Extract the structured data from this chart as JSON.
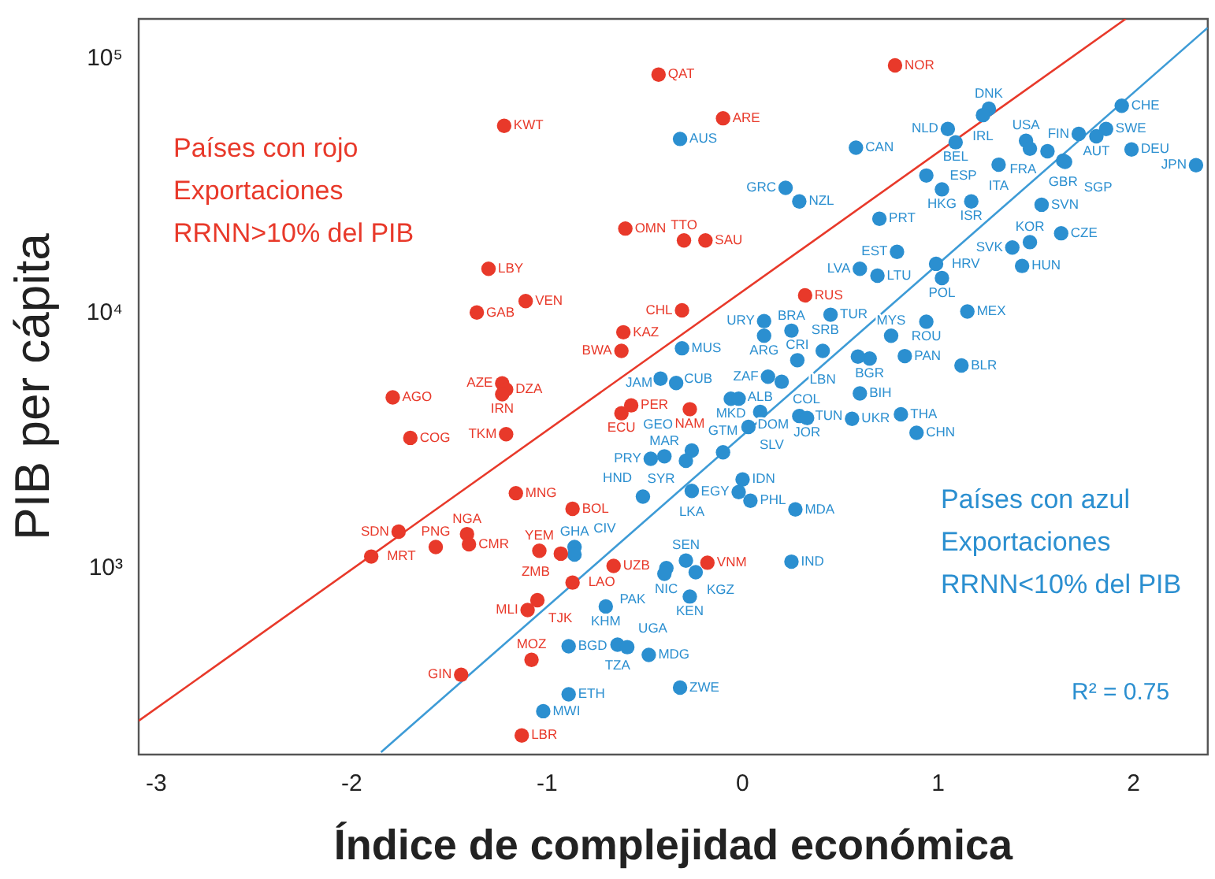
{
  "chart_data": {
    "type": "scatter",
    "xlabel": "Índice de complejidad económica",
    "ylabel": "PIB per cápita",
    "log": "y",
    "xlim": [
      -3.09,
      2.38
    ],
    "ylim": [
      185,
      144000
    ],
    "xticks": [
      -3,
      -2,
      -1,
      0,
      1,
      2
    ],
    "yticks": [
      {
        "value": 1000,
        "label": "10³"
      },
      {
        "value": 10000,
        "label": "10⁴"
      },
      {
        "value": 100000,
        "label": "10⁵"
      }
    ],
    "grid": false,
    "legend": false,
    "marker": "circle",
    "series": [
      {
        "color": "#e8392a",
        "x": [
          -0.43,
          -1.22,
          -0.1,
          0.78,
          -0.6,
          -0.3,
          -0.19,
          -1.3,
          -1.11,
          -1.36,
          -0.31,
          0.32,
          -0.61,
          -0.62,
          -1.23,
          -1.21,
          -1.23,
          -1.79,
          -0.57,
          -0.62,
          -0.27,
          -1.21,
          -1.7,
          -1.16,
          -0.87,
          -1.76,
          -1.9,
          -1.57,
          -1.41,
          -1.4,
          -1.04,
          -0.93,
          -0.66,
          -0.18,
          -0.87,
          -1.05,
          -1.1,
          -1.44,
          -1.08,
          -1.13
        ],
        "values": [
          87000,
          54700,
          58600,
          94600,
          21600,
          19400,
          19400,
          15000,
          11200,
          10100,
          10300,
          11800,
          8450,
          7140,
          5320,
          5030,
          4820,
          4690,
          4360,
          4060,
          4210,
          3360,
          3250,
          1970,
          1710,
          1390,
          1110,
          1210,
          1360,
          1240,
          1170,
          1140,
          1020,
          1050,
          877,
          748,
          684,
          381,
          436,
          220
        ]
      },
      {
        "color": "#2b8fd0",
        "x": [
          -0.32,
          0.22,
          0.29,
          0.58,
          1.05,
          1.26,
          1.23,
          1.09,
          1.45,
          1.47,
          1.56,
          1.72,
          1.86,
          1.81,
          1.94,
          1.99,
          1.64,
          1.65,
          2.32,
          1.31,
          0.94,
          1.02,
          1.17,
          1.53,
          0.7,
          1.63,
          1.47,
          1.38,
          1.43,
          0.79,
          0.6,
          0.69,
          0.99,
          1.02,
          0.45,
          1.15,
          0.94,
          0.76,
          0.65,
          0.59,
          0.83,
          1.12,
          0.6,
          0.41,
          0.56,
          0.81,
          0.89,
          0.11,
          0.25,
          0.11,
          -0.31,
          -0.42,
          -0.34,
          0.13,
          0.28,
          0.2,
          -0.06,
          -0.02,
          0.09,
          0.03,
          0.29,
          0.33,
          -0.1,
          -0.26,
          -0.4,
          -0.47,
          -0.29,
          0.0,
          -0.02,
          -0.26,
          -0.51,
          0.04,
          0.27,
          -0.86,
          -0.86,
          -0.29,
          -0.39,
          -0.4,
          -0.24,
          0.25,
          -0.27,
          -0.7,
          -0.89,
          -0.64,
          -0.59,
          -0.48,
          -0.32,
          -0.89,
          -1.02
        ],
        "values": [
          48600,
          31200,
          27600,
          44900,
          53200,
          63900,
          60300,
          47100,
          47800,
          44500,
          43500,
          50900,
          53200,
          49800,
          65600,
          44200,
          39900,
          39500,
          38300,
          38500,
          34900,
          30800,
          27600,
          26800,
          23600,
          20700,
          19100,
          18200,
          15400,
          17500,
          15000,
          14100,
          15700,
          13800,
          9900,
          10200,
          9290,
          8190,
          6660,
          6780,
          6810,
          6260,
          4860,
          7140,
          3860,
          4020,
          3400,
          9350,
          8570,
          8190,
          7310,
          5550,
          5340,
          5650,
          6560,
          5400,
          4630,
          4630,
          4110,
          3590,
          3960,
          3890,
          2850,
          2900,
          2750,
          2690,
          2640,
          2230,
          1990,
          2010,
          1910,
          1840,
          1700,
          1210,
          1130,
          1070,
          1000,
          950,
          963,
          1060,
          773,
          707,
          493,
          500,
          489,
          456,
          339,
          319,
          274
        ]
      },
      {
        "type": "line",
        "color": "#e8392a",
        "marker": "none",
        "x": [
          -3.09,
          1.96
        ],
        "values": [
          251,
          144000
        ]
      },
      {
        "type": "line",
        "color": "#3d9bd6",
        "marker": "none",
        "x": [
          -1.85,
          2.38
        ],
        "values": [
          189,
          133000
        ]
      }
    ],
    "annotations": [
      "Países con rojo\nExportaciones\nRRNN>10% del PIB",
      "Países con azul\nExportaciones\nRRNN<10% del PIB",
      "R² = 0.75",
      {
        "text": "QAT",
        "x": -0.43,
        "y": 87000
      },
      {
        "text": "KWT",
        "x": -1.22,
        "y": 54700
      },
      {
        "text": "ARE",
        "x": -0.1,
        "y": 58600
      },
      {
        "text": "NOR",
        "x": 0.78,
        "y": 94600
      },
      {
        "text": "OMN",
        "x": -0.6,
        "y": 21600
      },
      {
        "text": "TTO",
        "x": -0.3,
        "y": 19400
      },
      {
        "text": "SAU",
        "x": -0.19,
        "y": 19400
      },
      {
        "text": "LBY",
        "x": -1.3,
        "y": 15000
      },
      {
        "text": "VEN",
        "x": -1.11,
        "y": 11200
      },
      {
        "text": "GAB",
        "x": -1.36,
        "y": 10100
      },
      {
        "text": "CHL",
        "x": -0.31,
        "y": 10300
      },
      {
        "text": "RUS",
        "x": 0.32,
        "y": 11800
      },
      {
        "text": "KAZ",
        "x": -0.61,
        "y": 8450
      },
      {
        "text": "BWA",
        "x": -0.62,
        "y": 7140
      },
      {
        "text": "AZE",
        "x": -1.23,
        "y": 5320
      },
      {
        "text": "DZA",
        "x": -1.21,
        "y": 5030
      },
      {
        "text": "IRN",
        "x": -1.23,
        "y": 4820
      },
      {
        "text": "AGO",
        "x": -1.79,
        "y": 4690
      },
      {
        "text": "PER",
        "x": -0.57,
        "y": 4360
      },
      {
        "text": "ECU",
        "x": -0.62,
        "y": 4060
      },
      {
        "text": "NAM",
        "x": -0.27,
        "y": 4210
      },
      {
        "text": "TKM",
        "x": -1.21,
        "y": 3360
      },
      {
        "text": "COG",
        "x": -1.7,
        "y": 3250
      },
      {
        "text": "MNG",
        "x": -1.16,
        "y": 1970
      },
      {
        "text": "BOL",
        "x": -0.87,
        "y": 1710
      },
      {
        "text": "SDN",
        "x": -1.76,
        "y": 1390
      },
      {
        "text": "MRT",
        "x": -1.9,
        "y": 1110
      },
      {
        "text": "PNG",
        "x": -1.57,
        "y": 1210
      },
      {
        "text": "NGA",
        "x": -1.41,
        "y": 1360
      },
      {
        "text": "CMR",
        "x": -1.4,
        "y": 1240
      },
      {
        "text": "YEM",
        "x": -1.04,
        "y": 1170
      },
      {
        "text": "ZMB",
        "x": -0.93,
        "y": 1140
      },
      {
        "text": "UZB",
        "x": -0.66,
        "y": 1020
      },
      {
        "text": "VNM",
        "x": -0.18,
        "y": 1050
      },
      {
        "text": "LAO",
        "x": -0.87,
        "y": 877
      },
      {
        "text": "TJK",
        "x": -1.05,
        "y": 748
      },
      {
        "text": "MLI",
        "x": -1.1,
        "y": 684
      },
      {
        "text": "GIN",
        "x": -1.44,
        "y": 381
      },
      {
        "text": "MOZ",
        "x": -1.08,
        "y": 436
      },
      {
        "text": "LBR",
        "x": -1.13,
        "y": 220
      },
      {
        "text": "AUS",
        "x": -0.32,
        "y": 48600
      },
      {
        "text": "GRC",
        "x": 0.22,
        "y": 31200
      },
      {
        "text": "NZL",
        "x": 0.29,
        "y": 27600
      },
      {
        "text": "CAN",
        "x": 0.58,
        "y": 44900
      },
      {
        "text": "NLD",
        "x": 1.05,
        "y": 53200
      },
      {
        "text": "DNK",
        "x": 1.26,
        "y": 63900
      },
      {
        "text": "IRL",
        "x": 1.23,
        "y": 60300
      },
      {
        "text": "BEL",
        "x": 1.09,
        "y": 47100
      },
      {
        "text": "USA",
        "x": 1.45,
        "y": 47800
      },
      {
        "text": "FRA",
        "x": 1.56,
        "y": 43500
      },
      {
        "text": "FIN",
        "x": 1.72,
        "y": 50900
      },
      {
        "text": "SWE",
        "x": 1.86,
        "y": 53200
      },
      {
        "text": "AUT",
        "x": 1.81,
        "y": 49800
      },
      {
        "text": "CHE",
        "x": 1.94,
        "y": 65600
      },
      {
        "text": "DEU",
        "x": 1.99,
        "y": 44200
      },
      {
        "text": "GBR",
        "x": 1.64,
        "y": 39900
      },
      {
        "text": "SGP",
        "x": 1.65,
        "y": 39500
      },
      {
        "text": "JPN",
        "x": 2.32,
        "y": 38300
      },
      {
        "text": "ITA",
        "x": 1.31,
        "y": 38500
      },
      {
        "text": "ESP",
        "x": 0.94,
        "y": 34900
      },
      {
        "text": "HKG",
        "x": 1.02,
        "y": 30800
      },
      {
        "text": "ISR",
        "x": 1.17,
        "y": 27600
      },
      {
        "text": "SVN",
        "x": 1.53,
        "y": 26800
      },
      {
        "text": "PRT",
        "x": 0.7,
        "y": 23600
      },
      {
        "text": "CZE",
        "x": 1.63,
        "y": 20700
      },
      {
        "text": "KOR",
        "x": 1.47,
        "y": 19100
      },
      {
        "text": "SVK",
        "x": 1.38,
        "y": 18200
      },
      {
        "text": "HUN",
        "x": 1.43,
        "y": 15400
      },
      {
        "text": "EST",
        "x": 0.79,
        "y": 17500
      },
      {
        "text": "LVA",
        "x": 0.6,
        "y": 15000
      },
      {
        "text": "LTU",
        "x": 0.69,
        "y": 14100
      },
      {
        "text": "HRV",
        "x": 0.99,
        "y": 15700
      },
      {
        "text": "POL",
        "x": 1.02,
        "y": 13800
      },
      {
        "text": "TUR",
        "x": 0.45,
        "y": 9900
      },
      {
        "text": "MEX",
        "x": 1.15,
        "y": 10200
      },
      {
        "text": "ROU",
        "x": 0.94,
        "y": 9290
      },
      {
        "text": "MYS",
        "x": 0.76,
        "y": 8190
      },
      {
        "text": "BGR",
        "x": 0.65,
        "y": 6660
      },
      {
        "text": "SRB",
        "x": 0.59,
        "y": 6780
      },
      {
        "text": "PAN",
        "x": 0.83,
        "y": 6810
      },
      {
        "text": "BLR",
        "x": 1.12,
        "y": 6260
      },
      {
        "text": "BIH",
        "x": 0.6,
        "y": 4860
      },
      {
        "text": "LBN",
        "x": 0.41,
        "y": 7140
      },
      {
        "text": "UKR",
        "x": 0.56,
        "y": 3860
      },
      {
        "text": "THA",
        "x": 0.81,
        "y": 4020
      },
      {
        "text": "CHN",
        "x": 0.89,
        "y": 3400
      },
      {
        "text": "URY",
        "x": 0.11,
        "y": 9350
      },
      {
        "text": "BRA",
        "x": 0.25,
        "y": 8570
      },
      {
        "text": "ARG",
        "x": 0.11,
        "y": 8190
      },
      {
        "text": "MUS",
        "x": -0.31,
        "y": 7310
      },
      {
        "text": "CUB",
        "x": -0.42,
        "y": 5550
      },
      {
        "text": "JAM",
        "x": -0.34,
        "y": 5340
      },
      {
        "text": "ZAF",
        "x": 0.13,
        "y": 5650
      },
      {
        "text": "CRI",
        "x": 0.28,
        "y": 6560
      },
      {
        "text": "COL",
        "x": 0.2,
        "y": 5400
      },
      {
        "text": "MKD",
        "x": -0.06,
        "y": 4630
      },
      {
        "text": "DOM",
        "x": -0.02,
        "y": 4630
      },
      {
        "text": "ALB",
        "x": 0.09,
        "y": 4110
      },
      {
        "text": "SLV",
        "x": 0.03,
        "y": 3590
      },
      {
        "text": "TUN",
        "x": 0.29,
        "y": 3960
      },
      {
        "text": "JOR",
        "x": 0.33,
        "y": 3890
      },
      {
        "text": "GTM",
        "x": -0.1,
        "y": 2850
      },
      {
        "text": "GEO",
        "x": -0.26,
        "y": 2900
      },
      {
        "text": "MAR",
        "x": -0.4,
        "y": 2750
      },
      {
        "text": "PRY",
        "x": -0.47,
        "y": 2690
      },
      {
        "text": "SYR",
        "x": -0.29,
        "y": 2640
      },
      {
        "text": "IDN",
        "x": 0.0,
        "y": 2230
      },
      {
        "text": "EGY",
        "x": -0.02,
        "y": 1990
      },
      {
        "text": "LKA",
        "x": -0.26,
        "y": 2010
      },
      {
        "text": "HND",
        "x": -0.51,
        "y": 1910
      },
      {
        "text": "PHL",
        "x": 0.04,
        "y": 1840
      },
      {
        "text": "MDA",
        "x": 0.27,
        "y": 1700
      },
      {
        "text": "GHA",
        "x": -0.86,
        "y": 1210
      },
      {
        "text": "CIV",
        "x": -0.86,
        "y": 1130
      },
      {
        "text": "SEN",
        "x": -0.29,
        "y": 1070
      },
      {
        "text": "NIC",
        "x": -0.39,
        "y": 1000
      },
      {
        "text": "PAK",
        "x": -0.4,
        "y": 950
      },
      {
        "text": "KGZ",
        "x": -0.24,
        "y": 963
      },
      {
        "text": "IND",
        "x": 0.25,
        "y": 1060
      },
      {
        "text": "KEN",
        "x": -0.27,
        "y": 773
      },
      {
        "text": "KHM",
        "x": -0.7,
        "y": 707
      },
      {
        "text": "BGD",
        "x": -0.89,
        "y": 493
      },
      {
        "text": "TZA",
        "x": -0.64,
        "y": 500
      },
      {
        "text": "UGA",
        "x": -0.59,
        "y": 489
      },
      {
        "text": "MDG",
        "x": -0.48,
        "y": 456
      },
      {
        "text": "ZWE",
        "x": -0.32,
        "y": 339
      },
      {
        "text": "ETH",
        "x": -0.89,
        "y": 319
      },
      {
        "text": "MWI",
        "x": -1.02,
        "y": 274
      }
    ]
  }
}
